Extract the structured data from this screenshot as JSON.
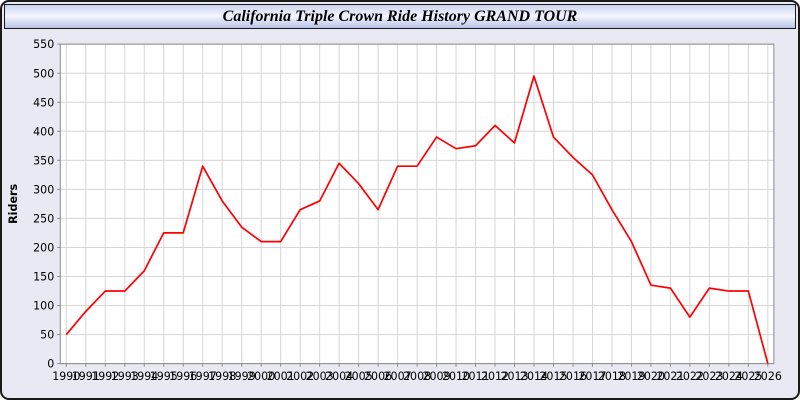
{
  "title": "California Triple Crown Ride History GRAND TOUR",
  "colors": {
    "background": "#e9e9f4",
    "plot_background": "#ffffff",
    "grid": "#d6d6d6",
    "axis": "#8a8a8a",
    "tick_text": "#000000",
    "series": "#ff0000"
  },
  "chart_data": {
    "type": "line",
    "title": "California Triple Crown Ride History GRAND TOUR",
    "xlabel": "",
    "ylabel": "Riders",
    "ylim": [
      0,
      550
    ],
    "ytick_step": 50,
    "grid": true,
    "legend": "none",
    "categories": [
      "1990",
      "1991",
      "1992",
      "1993",
      "1994",
      "1995",
      "1996",
      "1997",
      "1998",
      "1999",
      "2000",
      "2001",
      "2002",
      "2003",
      "2004",
      "2005",
      "2006",
      "2007",
      "2008",
      "2009",
      "2010",
      "2011",
      "2012",
      "2013",
      "2014",
      "2015",
      "2016",
      "2017",
      "2018",
      "2019",
      "2020",
      "2021",
      "2022",
      "2023",
      "2024",
      "2025",
      "2026"
    ],
    "series": [
      {
        "name": "Riders",
        "color": "#ff0000",
        "values": [
          50,
          90,
          125,
          125,
          160,
          225,
          225,
          340,
          280,
          235,
          210,
          210,
          265,
          280,
          345,
          310,
          265,
          340,
          340,
          390,
          370,
          375,
          410,
          380,
          495,
          390,
          355,
          325,
          265,
          210,
          135,
          130,
          80,
          130,
          125,
          125,
          0
        ]
      }
    ]
  }
}
